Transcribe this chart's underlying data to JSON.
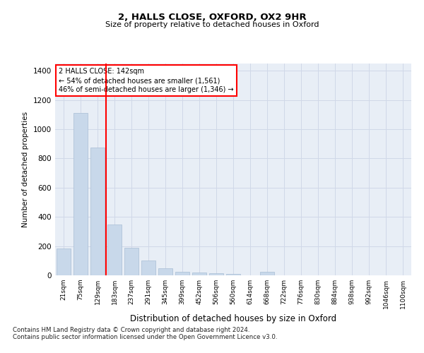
{
  "title1": "2, HALLS CLOSE, OXFORD, OX2 9HR",
  "title2": "Size of property relative to detached houses in Oxford",
  "xlabel": "Distribution of detached houses by size in Oxford",
  "ylabel": "Number of detached properties",
  "bar_color": "#c8d8ea",
  "bar_edgecolor": "#a8bdd4",
  "vline_color": "red",
  "annotation_title": "2 HALLS CLOSE: 142sqm",
  "annotation_line1": "← 54% of detached houses are smaller (1,561)",
  "annotation_line2": "46% of semi-detached houses are larger (1,346) →",
  "categories": [
    "21sqm",
    "75sqm",
    "129sqm",
    "183sqm",
    "237sqm",
    "291sqm",
    "345sqm",
    "399sqm",
    "452sqm",
    "506sqm",
    "560sqm",
    "614sqm",
    "668sqm",
    "722sqm",
    "776sqm",
    "830sqm",
    "884sqm",
    "938sqm",
    "992sqm",
    "1046sqm",
    "1100sqm"
  ],
  "values": [
    185,
    1110,
    875,
    350,
    190,
    100,
    48,
    25,
    20,
    15,
    10,
    0,
    22,
    0,
    0,
    0,
    0,
    0,
    0,
    0,
    0
  ],
  "vline_pos": 2.5,
  "ylim": [
    0,
    1450
  ],
  "yticks": [
    0,
    200,
    400,
    600,
    800,
    1000,
    1200,
    1400
  ],
  "footnote1": "Contains HM Land Registry data © Crown copyright and database right 2024.",
  "footnote2": "Contains public sector information licensed under the Open Government Licence v3.0.",
  "bg_color": "#e8eef6",
  "grid_color": "#d0d8e8"
}
